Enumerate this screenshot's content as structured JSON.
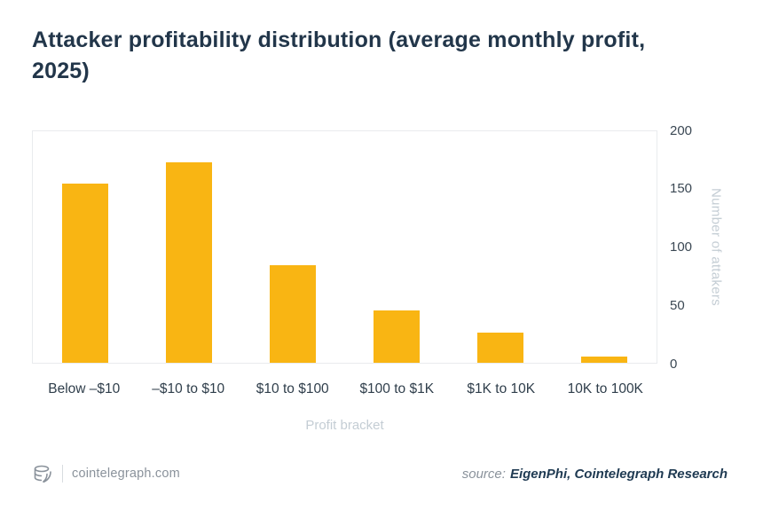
{
  "title": "Attacker profitability distribution (average monthly profit, 2025)",
  "chart_data": {
    "type": "bar",
    "title": "Attacker profitability distribution (average monthly profit, 2025)",
    "categories": [
      "Below –$10",
      "–$10 to $10",
      "$10 to $100",
      "$100 to $1K",
      "$1K to 10K",
      "10K to 100K"
    ],
    "values": [
      155,
      173,
      84,
      45,
      26,
      5
    ],
    "xlabel": "Profit bracket",
    "ylabel": "Number of attakers",
    "ylim": [
      0,
      200
    ],
    "yticks": [
      0,
      50,
      100,
      150,
      200
    ],
    "bar_color": "#F9B513",
    "grid": false,
    "legend": "none",
    "y_axis_position": "right"
  },
  "footer": {
    "site": "cointelegraph.com",
    "source_prefix": "source:",
    "source_value": "EigenPhi, Cointelegraph Research"
  },
  "colors": {
    "title_text": "#22364a",
    "bar": "#F9B513",
    "muted_axis_text": "#c4cdd4",
    "tick_text": "#3b4854",
    "footer_text": "#8a929b"
  }
}
